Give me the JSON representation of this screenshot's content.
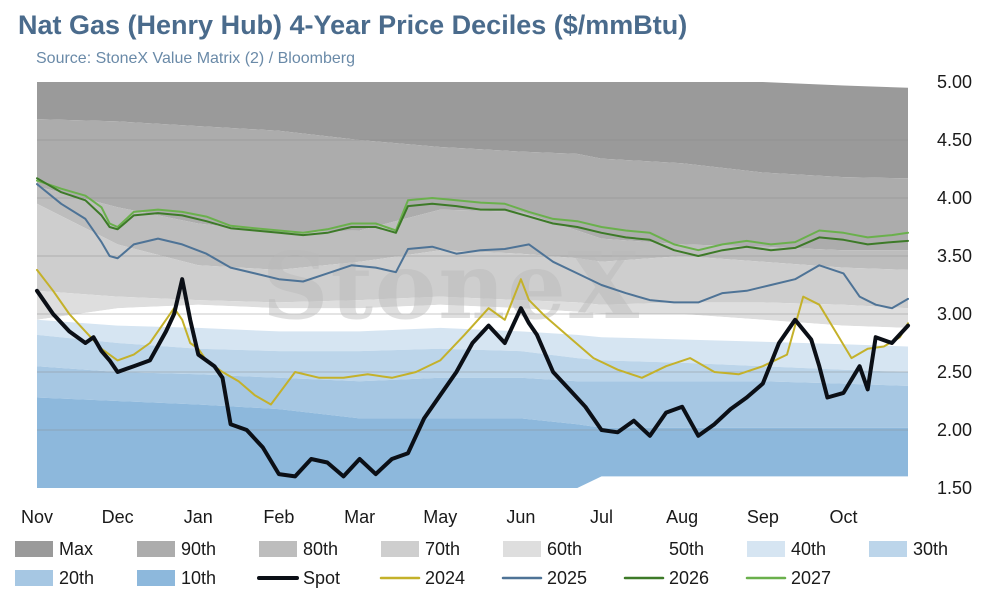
{
  "header": {
    "title": "Nat Gas (Henry Hub) 4-Year Price Deciles ($/mmBtu)",
    "subtitle": "Source: StoneX Value Matrix (2) / Bloomberg"
  },
  "watermark": "StoneX",
  "chart_data": {
    "type": "area",
    "ylim": [
      1.5,
      5.0
    ],
    "yticks": [
      "5.00",
      "4.50",
      "4.00",
      "3.50",
      "3.00",
      "2.50",
      "2.00",
      "1.50"
    ],
    "ytick_values": [
      5.0,
      4.5,
      4.0,
      3.5,
      3.0,
      2.5,
      2.0,
      1.5
    ],
    "xlim": [
      0,
      10.8
    ],
    "categories": [
      "Nov",
      "Dec",
      "Jan",
      "Feb",
      "Mar",
      "May",
      "Jun",
      "Jul",
      "Aug",
      "Sep",
      "Oct"
    ],
    "category_x": [
      0,
      1,
      2,
      3,
      4,
      5,
      6,
      7,
      8,
      9,
      10
    ],
    "grid": true,
    "legend_position": "bottom",
    "deciles": {
      "x": [
        0,
        1,
        2,
        3,
        4,
        5,
        6,
        6.7,
        7,
        8,
        9,
        10,
        10.8
      ],
      "bands": [
        {
          "name": "Max",
          "color": "#9a9a9a",
          "values": [
            5.0,
            5.0,
            5.0,
            5.0,
            5.0,
            5.0,
            5.0,
            5.0,
            5.0,
            5.0,
            5.0,
            4.97,
            4.95
          ]
        },
        {
          "name": "90th",
          "color": "#acacac",
          "values": [
            4.68,
            4.66,
            4.62,
            4.58,
            4.5,
            4.44,
            4.4,
            4.38,
            4.34,
            4.3,
            4.22,
            4.18,
            4.17
          ]
        },
        {
          "name": "80th",
          "color": "#bdbdbd",
          "values": [
            4.1,
            3.92,
            3.78,
            3.7,
            3.72,
            3.9,
            3.88,
            3.72,
            3.65,
            3.6,
            3.58,
            3.55,
            3.55
          ]
        },
        {
          "name": "70th",
          "color": "#cecece",
          "values": [
            3.95,
            3.6,
            3.42,
            3.38,
            3.45,
            3.55,
            3.52,
            3.48,
            3.45,
            3.5,
            3.45,
            3.4,
            3.38
          ]
        },
        {
          "name": "60th",
          "color": "#dedede",
          "values": [
            3.2,
            3.15,
            3.12,
            3.1,
            3.12,
            3.15,
            3.12,
            3.1,
            3.08,
            3.1,
            3.1,
            3.08,
            3.05
          ]
        },
        {
          "name": "50th",
          "color": "#ffffff",
          "values": [
            2.95,
            3.05,
            3.08,
            3.05,
            3.05,
            3.08,
            3.05,
            3.02,
            3.0,
            3.0,
            2.95,
            2.9,
            2.88
          ]
        },
        {
          "name": "40th",
          "color": "#d6e5f2",
          "values": [
            2.95,
            2.9,
            2.88,
            2.85,
            2.85,
            2.88,
            2.85,
            2.82,
            2.8,
            2.78,
            2.76,
            2.74,
            2.72
          ]
        },
        {
          "name": "30th",
          "color": "#bcd5ea",
          "values": [
            2.82,
            2.75,
            2.7,
            2.68,
            2.68,
            2.7,
            2.68,
            2.62,
            2.6,
            2.58,
            2.55,
            2.52,
            2.5
          ]
        },
        {
          "name": "20th",
          "color": "#a6c7e3",
          "values": [
            2.55,
            2.5,
            2.48,
            2.45,
            2.42,
            2.45,
            2.45,
            2.42,
            2.42,
            2.42,
            2.42,
            2.4,
            2.38
          ]
        },
        {
          "name": "10th",
          "color": "#8db8dc",
          "values": [
            2.28,
            2.25,
            2.22,
            2.18,
            2.1,
            2.1,
            2.1,
            2.05,
            2.02,
            2.02,
            2.02,
            2.02,
            2.02
          ]
        },
        {
          "name": "Min",
          "color": "#8db8dc",
          "values": [
            1.5,
            1.5,
            1.5,
            1.5,
            1.5,
            1.5,
            1.5,
            1.5,
            1.6,
            1.6,
            1.6,
            1.6,
            1.6
          ]
        }
      ]
    },
    "series": [
      {
        "name": "2027",
        "color": "#6ab04c",
        "width": 2,
        "x": [
          0,
          0.3,
          0.6,
          0.8,
          0.9,
          1.0,
          1.2,
          1.5,
          1.8,
          2.1,
          2.4,
          2.7,
          3.0,
          3.3,
          3.6,
          3.9,
          4.2,
          4.45,
          4.6,
          4.9,
          5.2,
          5.5,
          5.8,
          6.1,
          6.4,
          6.7,
          7.0,
          7.3,
          7.6,
          7.9,
          8.2,
          8.5,
          8.8,
          9.1,
          9.4,
          9.7,
          10.0,
          10.3,
          10.6,
          10.8
        ],
        "values": [
          4.15,
          4.08,
          4.02,
          3.92,
          3.78,
          3.75,
          3.88,
          3.9,
          3.88,
          3.84,
          3.76,
          3.74,
          3.72,
          3.7,
          3.73,
          3.78,
          3.78,
          3.72,
          3.98,
          4.0,
          3.98,
          3.96,
          3.95,
          3.88,
          3.82,
          3.8,
          3.75,
          3.72,
          3.7,
          3.6,
          3.55,
          3.6,
          3.63,
          3.6,
          3.62,
          3.72,
          3.7,
          3.66,
          3.68,
          3.7
        ]
      },
      {
        "name": "2026",
        "color": "#3d7a28",
        "width": 2,
        "x": [
          0,
          0.3,
          0.6,
          0.8,
          0.9,
          1.0,
          1.2,
          1.5,
          1.8,
          2.1,
          2.4,
          2.7,
          3.0,
          3.3,
          3.6,
          3.9,
          4.2,
          4.45,
          4.6,
          4.9,
          5.2,
          5.5,
          5.8,
          6.1,
          6.4,
          6.7,
          7.0,
          7.3,
          7.6,
          7.9,
          8.2,
          8.5,
          8.8,
          9.1,
          9.4,
          9.7,
          10.0,
          10.3,
          10.6,
          10.8
        ],
        "values": [
          4.17,
          4.05,
          3.98,
          3.85,
          3.75,
          3.73,
          3.85,
          3.87,
          3.85,
          3.8,
          3.74,
          3.72,
          3.7,
          3.68,
          3.7,
          3.75,
          3.75,
          3.7,
          3.93,
          3.95,
          3.93,
          3.9,
          3.9,
          3.84,
          3.78,
          3.75,
          3.7,
          3.66,
          3.64,
          3.55,
          3.5,
          3.55,
          3.58,
          3.55,
          3.57,
          3.66,
          3.64,
          3.6,
          3.62,
          3.63
        ]
      },
      {
        "name": "2025",
        "color": "#4e7396",
        "width": 2,
        "x": [
          0,
          0.3,
          0.6,
          0.8,
          0.9,
          1.0,
          1.2,
          1.5,
          1.8,
          2.1,
          2.4,
          2.7,
          3.0,
          3.3,
          3.6,
          3.9,
          4.2,
          4.45,
          4.6,
          4.9,
          5.2,
          5.5,
          5.8,
          6.1,
          6.4,
          6.7,
          7.0,
          7.3,
          7.6,
          7.9,
          8.2,
          8.5,
          8.8,
          9.1,
          9.4,
          9.7,
          10.0,
          10.2,
          10.4,
          10.6,
          10.8
        ],
        "values": [
          4.12,
          3.95,
          3.82,
          3.62,
          3.5,
          3.48,
          3.6,
          3.65,
          3.6,
          3.52,
          3.4,
          3.35,
          3.3,
          3.28,
          3.35,
          3.42,
          3.4,
          3.36,
          3.56,
          3.58,
          3.52,
          3.55,
          3.56,
          3.6,
          3.45,
          3.35,
          3.25,
          3.18,
          3.12,
          3.1,
          3.1,
          3.18,
          3.2,
          3.25,
          3.3,
          3.42,
          3.35,
          3.15,
          3.08,
          3.05,
          3.13
        ]
      },
      {
        "name": "2024",
        "color": "#c4b12a",
        "width": 2,
        "x": [
          0,
          0.2,
          0.4,
          0.6,
          0.8,
          1.0,
          1.2,
          1.4,
          1.6,
          1.7,
          1.8,
          1.9,
          2.0,
          2.1,
          2.3,
          2.5,
          2.7,
          2.9,
          3.2,
          3.5,
          3.8,
          4.1,
          4.4,
          4.7,
          5.0,
          5.3,
          5.6,
          5.8,
          6.0,
          6.1,
          6.3,
          6.6,
          6.9,
          7.2,
          7.5,
          7.8,
          8.1,
          8.4,
          8.7,
          9.0,
          9.3,
          9.5,
          9.7,
          9.9,
          10.1,
          10.3,
          10.5,
          10.7,
          10.8
        ],
        "values": [
          3.38,
          3.2,
          3.0,
          2.85,
          2.7,
          2.6,
          2.65,
          2.75,
          2.95,
          3.05,
          2.95,
          2.75,
          2.7,
          2.6,
          2.5,
          2.42,
          2.3,
          2.22,
          2.5,
          2.45,
          2.45,
          2.48,
          2.45,
          2.5,
          2.6,
          2.82,
          3.05,
          2.95,
          3.3,
          3.12,
          2.98,
          2.8,
          2.62,
          2.52,
          2.45,
          2.55,
          2.62,
          2.5,
          2.48,
          2.55,
          2.65,
          3.15,
          3.08,
          2.85,
          2.62,
          2.7,
          2.72,
          2.8,
          2.92
        ]
      },
      {
        "name": "Spot",
        "color": "#0b0f16",
        "width": 4,
        "x": [
          0,
          0.2,
          0.4,
          0.6,
          0.7,
          0.8,
          0.9,
          1.0,
          1.2,
          1.4,
          1.6,
          1.7,
          1.8,
          1.9,
          2.0,
          2.2,
          2.3,
          2.4,
          2.6,
          2.8,
          3.0,
          3.2,
          3.4,
          3.6,
          3.8,
          4.0,
          4.2,
          4.4,
          4.6,
          4.8,
          5.0,
          5.2,
          5.4,
          5.6,
          5.8,
          6.0,
          6.1,
          6.2,
          6.4,
          6.6,
          6.8,
          7.0,
          7.2,
          7.4,
          7.6,
          7.8,
          8.0,
          8.2,
          8.4,
          8.6,
          8.8,
          9.0,
          9.2,
          9.4,
          9.6,
          9.7,
          9.8,
          10.0,
          10.2,
          10.3,
          10.4,
          10.6,
          10.8
        ],
        "values": [
          3.2,
          3.0,
          2.85,
          2.75,
          2.8,
          2.68,
          2.6,
          2.5,
          2.55,
          2.6,
          2.85,
          3.0,
          3.3,
          2.95,
          2.65,
          2.55,
          2.45,
          2.05,
          2.0,
          1.85,
          1.62,
          1.6,
          1.75,
          1.72,
          1.6,
          1.75,
          1.62,
          1.75,
          1.8,
          2.1,
          2.3,
          2.5,
          2.75,
          2.9,
          2.75,
          3.05,
          2.92,
          2.82,
          2.5,
          2.35,
          2.2,
          2.0,
          1.98,
          2.08,
          1.95,
          2.15,
          2.2,
          1.95,
          2.05,
          2.18,
          2.28,
          2.4,
          2.75,
          2.95,
          2.78,
          2.55,
          2.28,
          2.32,
          2.55,
          2.35,
          2.8,
          2.75,
          2.9
        ]
      }
    ]
  },
  "legend": {
    "items": [
      {
        "label": "Max",
        "type": "box",
        "color": "#9a9a9a"
      },
      {
        "label": "90th",
        "type": "box",
        "color": "#acacac"
      },
      {
        "label": "80th",
        "type": "box",
        "color": "#bdbdbd"
      },
      {
        "label": "70th",
        "type": "box",
        "color": "#cecece"
      },
      {
        "label": "60th",
        "type": "box",
        "color": "#dedede"
      },
      {
        "label": "50th",
        "type": "box",
        "color": "#ffffff"
      },
      {
        "label": "40th",
        "type": "box",
        "color": "#d6e5f2"
      },
      {
        "label": "30th",
        "type": "box",
        "color": "#bcd5ea"
      },
      {
        "label": "20th",
        "type": "box",
        "color": "#a6c7e3"
      },
      {
        "label": "10th",
        "type": "box",
        "color": "#8db8dc"
      },
      {
        "label": "Spot",
        "type": "line",
        "color": "#0b0f16"
      },
      {
        "label": "2024",
        "type": "line",
        "color": "#c4b12a"
      },
      {
        "label": "2025",
        "type": "line",
        "color": "#4e7396"
      },
      {
        "label": "2026",
        "type": "line",
        "color": "#3d7a28"
      },
      {
        "label": "2027",
        "type": "line",
        "color": "#6ab04c"
      }
    ]
  }
}
